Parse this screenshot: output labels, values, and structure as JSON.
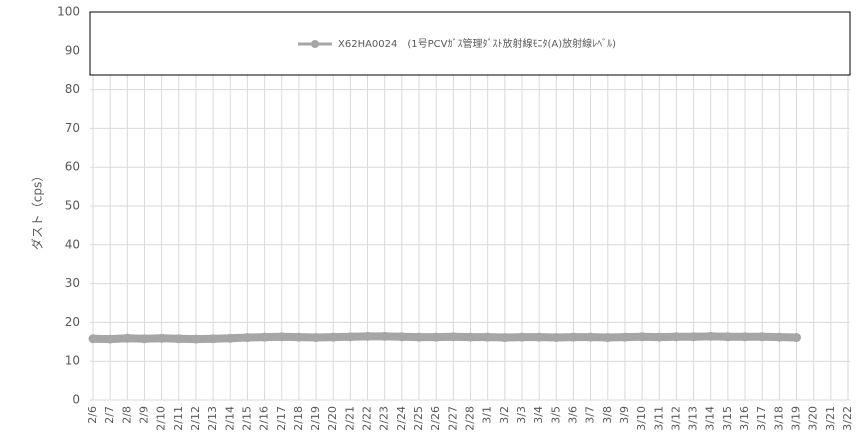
{
  "chart_data": {
    "type": "line",
    "y_label": "ダスト（cps）",
    "categories": [
      "2/6",
      "2/7",
      "2/8",
      "2/9",
      "2/10",
      "2/11",
      "2/12",
      "2/13",
      "2/14",
      "2/15",
      "2/16",
      "2/17",
      "2/18",
      "2/19",
      "2/20",
      "2/21",
      "2/22",
      "2/23",
      "2/24",
      "2/25",
      "2/26",
      "2/27",
      "2/28",
      "3/1",
      "3/2",
      "3/3",
      "3/4",
      "3/5",
      "3/6",
      "3/7",
      "3/8",
      "3/9",
      "3/10",
      "3/11",
      "3/12",
      "3/13",
      "3/14",
      "3/15",
      "3/16",
      "3/17",
      "3/18",
      "3/19",
      "3/20",
      "3/21",
      "3/22"
    ],
    "series": [
      {
        "name": "X62HA0024　(1号PCVｶﾞｽ管理ﾀﾞｽﾄ放射線ﾓﾆﾀ(A)放射線ﾚﾍﾞﾙ)",
        "color": "#a6a6a6",
        "values": [
          15.8,
          15.7,
          15.9,
          15.8,
          15.9,
          15.8,
          15.7,
          15.8,
          15.9,
          16.1,
          16.2,
          16.3,
          16.2,
          16.1,
          16.2,
          16.3,
          16.4,
          16.4,
          16.3,
          16.2,
          16.2,
          16.3,
          16.2,
          16.2,
          16.1,
          16.2,
          16.2,
          16.1,
          16.2,
          16.2,
          16.1,
          16.2,
          16.3,
          16.2,
          16.3,
          16.3,
          16.4,
          16.3,
          16.3,
          16.3,
          16.2,
          16.1,
          null,
          null,
          null
        ]
      }
    ],
    "ylim": [
      0,
      100
    ],
    "yticks": [
      0,
      10,
      20,
      30,
      40,
      50,
      60,
      70,
      80,
      90,
      100
    ],
    "grid": true,
    "legend": "top"
  }
}
